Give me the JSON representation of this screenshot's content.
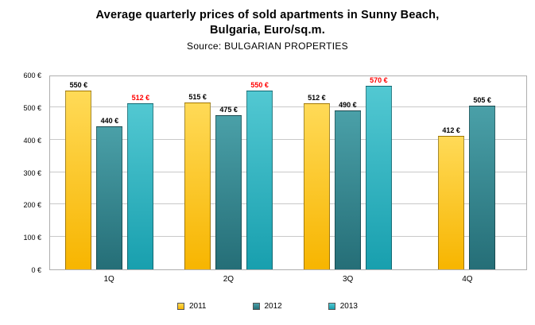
{
  "title": {
    "line1": "Average quarterly prices of sold apartments in Sunny Beach,",
    "line2": "Bulgaria, Euro/sq.m.",
    "source": "Source: BULGARIAN PROPERTIES"
  },
  "chart_data": {
    "type": "bar",
    "title": "Average quarterly prices of sold apartments in Sunny Beach, Bulgaria, Euro/sq.m.",
    "subtitle": "Source: BULGARIAN PROPERTIES",
    "categories": [
      "1Q",
      "2Q",
      "3Q",
      "4Q"
    ],
    "series": [
      {
        "name": "2011",
        "values": [
          550,
          515,
          512,
          412
        ],
        "color": "#F7B500",
        "color_light": "#FFDA57",
        "label_color": "#000000"
      },
      {
        "name": "2012",
        "values": [
          440,
          475,
          490,
          505
        ],
        "color": "#256E77",
        "color_light": "#4AA0A8",
        "label_color": "#000000"
      },
      {
        "name": "2013",
        "values": [
          512,
          550,
          570,
          null
        ],
        "color": "#189FAE",
        "color_light": "#52C8D2",
        "label_color": "#FF0000"
      }
    ],
    "ylim": [
      0,
      600
    ],
    "ytick_step": 100,
    "ytick_labels": [
      "0 €",
      "100 €",
      "200 €",
      "300 €",
      "400 €",
      "500 €",
      "600 €"
    ],
    "value_suffix": " €",
    "grid": true,
    "legend_position": "bottom",
    "xlabel": "",
    "ylabel": ""
  }
}
